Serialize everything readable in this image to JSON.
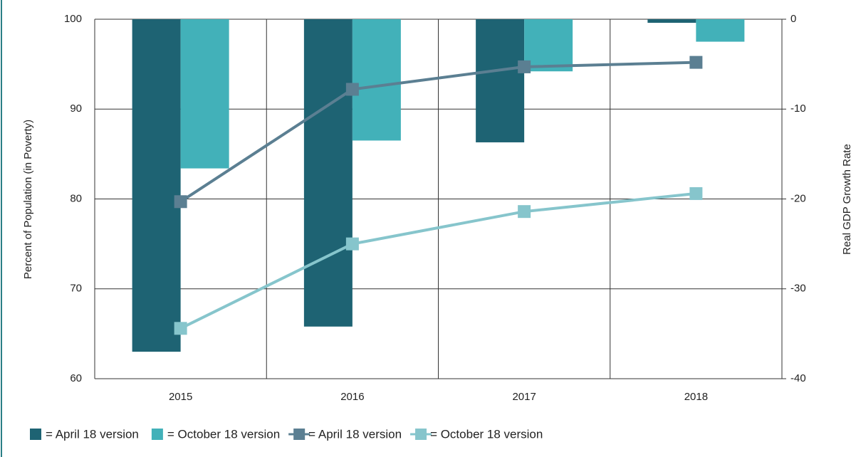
{
  "chart_data": {
    "type": "bar",
    "categories": [
      "2015",
      "2016",
      "2017",
      "2018"
    ],
    "y_label": "Percent of Population (in Poverty)",
    "y2_label": "Real GDP Growth Rate",
    "ylim": [
      60,
      100
    ],
    "yticks": [
      60,
      70,
      80,
      90,
      100
    ],
    "y2lim": [
      -40,
      0
    ],
    "y2ticks": [
      -40,
      -30,
      -20,
      -10,
      0
    ],
    "grid": true,
    "series": [
      {
        "name": "= April 18 version",
        "type": "bar",
        "axis": "y2",
        "color": "#1e6373",
        "values": [
          -37.0,
          -34.2,
          -13.7,
          -0.4
        ]
      },
      {
        "name": "= October 18 version",
        "type": "bar",
        "axis": "y2",
        "color": "#42b1b9",
        "values": [
          -16.6,
          -13.5,
          -5.8,
          -2.5
        ]
      },
      {
        "name": "= April 18 version",
        "type": "line",
        "axis": "y",
        "color": "#5b7f92",
        "values": [
          79.7,
          92.2,
          94.7,
          95.2
        ]
      },
      {
        "name": "= October 18 version",
        "type": "line",
        "axis": "y",
        "color": "#86c5cc",
        "values": [
          65.6,
          75.0,
          78.6,
          80.6
        ]
      }
    ]
  }
}
